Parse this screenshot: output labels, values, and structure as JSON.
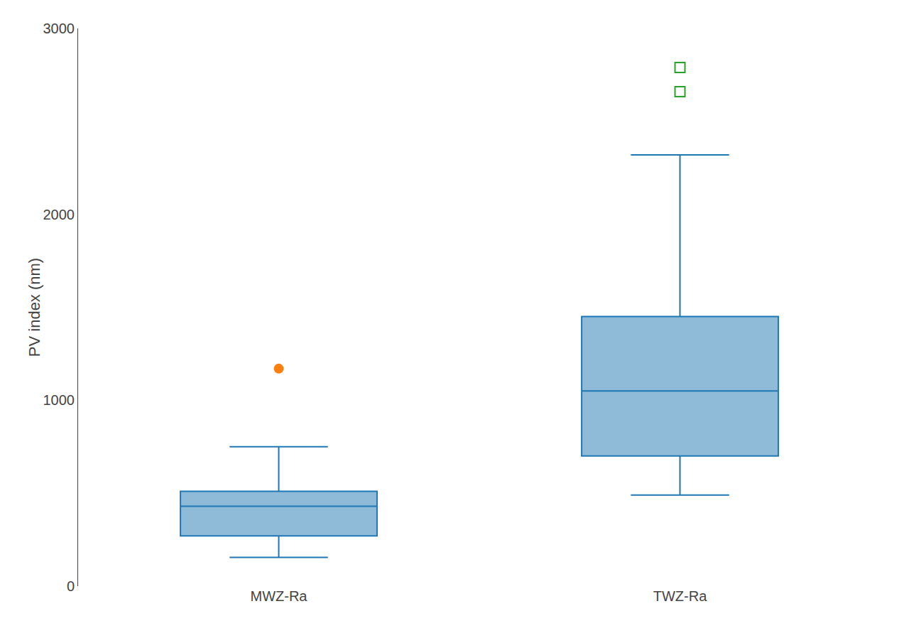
{
  "chart_data": {
    "type": "box",
    "ylabel": "PV index (nm)",
    "categories": [
      "MWZ-Ra",
      "TWZ-Ra"
    ],
    "q1": [
      270,
      700
    ],
    "median": [
      430,
      1050
    ],
    "q3": [
      510,
      1450
    ],
    "whisker_low": [
      155,
      490
    ],
    "whisker_high": [
      750,
      2320
    ],
    "outliers_filled": [
      [
        1170
      ],
      []
    ],
    "outliers_open": [
      [],
      [
        2660,
        2790
      ]
    ],
    "ylim": [
      0,
      3000
    ],
    "yticks": [
      0,
      1000,
      2000,
      3000
    ],
    "grid": false
  }
}
